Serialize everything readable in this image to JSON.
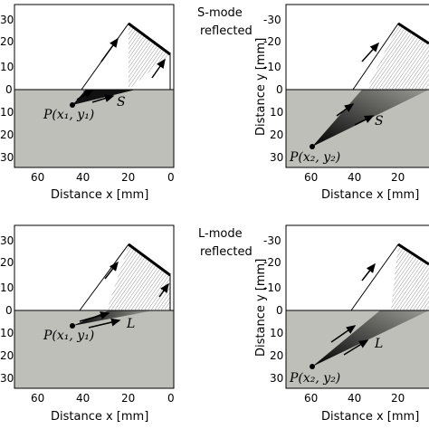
{
  "middle_labels": {
    "top": [
      "S-mode",
      "reflected"
    ],
    "bottom": [
      "L-mode",
      "reflected"
    ]
  },
  "axes": {
    "x_label": "Distance x [mm]",
    "y_label": "Distance y [mm]"
  },
  "panels": [
    {
      "id": "top-left",
      "x_ticks": [
        "60",
        "40",
        "20",
        "0"
      ],
      "y_ticks": [
        "30",
        "20",
        "10",
        "0",
        "10",
        "20",
        "30"
      ],
      "point_label": "P(x₁, y₁)",
      "wave_label": "S"
    },
    {
      "id": "top-right",
      "x_ticks": [
        "60",
        "40",
        "20",
        "0"
      ],
      "y_ticks": [
        "-30",
        "-20",
        "-10",
        "0",
        "10",
        "20",
        "30"
      ],
      "point_label": "P(x₂, y₂)",
      "wave_label": "S"
    },
    {
      "id": "bottom-left",
      "x_ticks": [
        "60",
        "40",
        "20",
        "0"
      ],
      "y_ticks": [
        "30",
        "20",
        "10",
        "0",
        "10",
        "20",
        "30"
      ],
      "point_label": "P(x₁, y₁)",
      "wave_label": "L"
    },
    {
      "id": "bottom-right",
      "x_ticks": [
        "60",
        "40",
        "20",
        "0"
      ],
      "y_ticks": [
        "-30",
        "-20",
        "-10",
        "0",
        "10",
        "20",
        "30"
      ],
      "point_label": "P(x₂, y₂)",
      "wave_label": "L"
    }
  ],
  "colors": {
    "solid": "#bfbfb9",
    "frame": "#000000",
    "fan_dark": "#111111"
  }
}
